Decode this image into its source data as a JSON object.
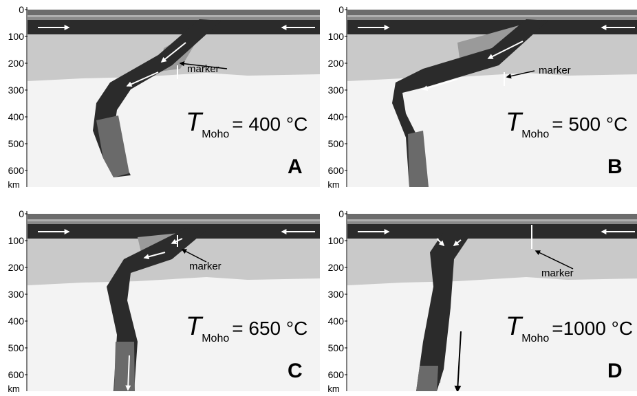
{
  "panels": [
    {
      "letter": "A",
      "t_symbol": "T",
      "t_subscript": "Moho",
      "t_value": "= 400 °C",
      "marker": "marker",
      "depth_ticks": [
        0,
        100,
        200,
        300,
        400,
        500,
        600
      ],
      "depth_unit": "km"
    },
    {
      "letter": "B",
      "t_symbol": "T",
      "t_subscript": "Moho",
      "t_value": "= 500 °C",
      "marker": "marker",
      "depth_ticks": [
        0,
        100,
        200,
        300,
        400,
        500,
        600
      ],
      "depth_unit": "km"
    },
    {
      "letter": "C",
      "t_symbol": "T",
      "t_subscript": "Moho",
      "t_value": "= 650 °C",
      "marker": "marker",
      "depth_ticks": [
        0,
        100,
        200,
        300,
        400,
        500,
        600
      ],
      "depth_unit": "km"
    },
    {
      "letter": "D",
      "t_symbol": "T",
      "t_subscript": "Moho",
      "t_value": "=1000 °C",
      "marker": "marker",
      "depth_ticks": [
        0,
        100,
        200,
        300,
        400,
        500,
        600
      ],
      "depth_unit": "km"
    }
  ]
}
